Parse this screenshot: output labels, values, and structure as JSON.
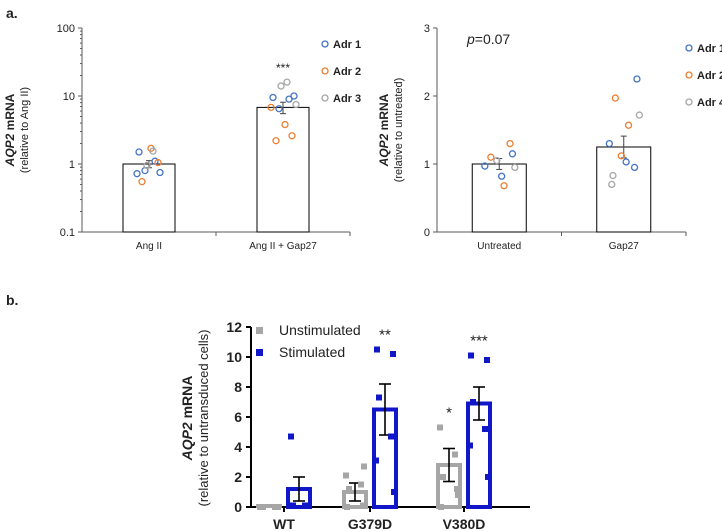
{
  "panel_labels": {
    "a": "a.",
    "b": "b."
  },
  "colors": {
    "blue": "#4472C4",
    "orange": "#ED7D31",
    "gray": "#A5A5A5",
    "dark_blue": "#0F17C8",
    "light_gray": "#A6A6A6",
    "axis": "#595959"
  },
  "chart_data": [
    {
      "id": "a-left",
      "type": "bar",
      "scale": "log",
      "ylabel_italic": "AQP2",
      "ylabel_rest": " mRNA",
      "ylabel2": "(relative to Ang II)",
      "ylim": [
        0.1,
        100
      ],
      "yticks": [
        {
          "v": 0.1,
          "label": "0.1"
        },
        {
          "v": 1,
          "label": "1"
        },
        {
          "v": 10,
          "label": "10"
        },
        {
          "v": 100,
          "label": "100"
        }
      ],
      "categories": [
        "Ang II",
        "Ang II + Gap27"
      ],
      "values": [
        1.0,
        6.8
      ],
      "error": [
        0.12,
        1.3
      ],
      "significance": [
        "",
        "***"
      ],
      "legend": [
        {
          "name": "Adr 1",
          "color": "blue"
        },
        {
          "name": "Adr 2",
          "color": "orange"
        },
        {
          "name": "Adr 3",
          "color": "gray"
        }
      ],
      "points": [
        [
          {
            "v": 1.5,
            "c": "blue"
          },
          {
            "v": 1.1,
            "c": "blue"
          },
          {
            "v": 0.8,
            "c": "blue"
          },
          {
            "v": 0.75,
            "c": "blue"
          },
          {
            "v": 0.72,
            "c": "blue"
          },
          {
            "v": 1.7,
            "c": "orange"
          },
          {
            "v": 1.05,
            "c": "orange"
          },
          {
            "v": 0.55,
            "c": "orange"
          },
          {
            "v": 1.55,
            "c": "gray"
          },
          {
            "v": 0.95,
            "c": "gray"
          }
        ],
        [
          {
            "v": 9.5,
            "c": "blue"
          },
          {
            "v": 9.0,
            "c": "blue"
          },
          {
            "v": 6.5,
            "c": "blue"
          },
          {
            "v": 10.0,
            "c": "blue"
          },
          {
            "v": 6.8,
            "c": "orange"
          },
          {
            "v": 3.8,
            "c": "orange"
          },
          {
            "v": 2.6,
            "c": "orange"
          },
          {
            "v": 2.2,
            "c": "orange"
          },
          {
            "v": 16.0,
            "c": "gray"
          },
          {
            "v": 14.0,
            "c": "gray"
          },
          {
            "v": 7.5,
            "c": "gray"
          }
        ]
      ]
    },
    {
      "id": "a-right",
      "type": "bar",
      "scale": "linear",
      "annotation_p": "p",
      "annotation_rest": "=0.07",
      "ylabel_italic": "AQP2",
      "ylabel_rest": " mRNA",
      "ylabel2": "(relative to untreated)",
      "ylim": [
        0,
        3
      ],
      "yticks": [
        {
          "v": 0,
          "label": "0"
        },
        {
          "v": 1,
          "label": "1"
        },
        {
          "v": 2,
          "label": "2"
        },
        {
          "v": 3,
          "label": "3"
        }
      ],
      "categories": [
        "Untreated",
        "Gap27"
      ],
      "values": [
        1.0,
        1.25
      ],
      "error": [
        0.08,
        0.16
      ],
      "legend": [
        {
          "name": "Adr 1",
          "color": "blue"
        },
        {
          "name": "Adr 2",
          "color": "orange"
        },
        {
          "name": "Adr 4",
          "color": "gray"
        }
      ],
      "points": [
        [
          {
            "v": 1.15,
            "c": "blue"
          },
          {
            "v": 0.97,
            "c": "blue"
          },
          {
            "v": 0.82,
            "c": "blue"
          },
          {
            "v": 1.3,
            "c": "orange"
          },
          {
            "v": 1.1,
            "c": "orange"
          },
          {
            "v": 0.68,
            "c": "orange"
          },
          {
            "v": 1.05,
            "c": "gray"
          },
          {
            "v": 0.95,
            "c": "gray"
          }
        ],
        [
          {
            "v": 2.25,
            "c": "blue"
          },
          {
            "v": 1.3,
            "c": "blue"
          },
          {
            "v": 1.03,
            "c": "blue"
          },
          {
            "v": 0.95,
            "c": "blue"
          },
          {
            "v": 1.97,
            "c": "orange"
          },
          {
            "v": 1.57,
            "c": "orange"
          },
          {
            "v": 1.12,
            "c": "orange"
          },
          {
            "v": 1.72,
            "c": "gray"
          },
          {
            "v": 0.83,
            "c": "gray"
          },
          {
            "v": 0.7,
            "c": "gray"
          }
        ]
      ]
    },
    {
      "id": "b",
      "type": "bar",
      "scale": "linear",
      "ylabel_italic": "AQP2",
      "ylabel_rest": " mRNA",
      "ylabel2": "(relative to untransduced cells)",
      "ylim": [
        0,
        12
      ],
      "yticks": [
        {
          "v": 0,
          "label": "0"
        },
        {
          "v": 2,
          "label": "2"
        },
        {
          "v": 4,
          "label": "4"
        },
        {
          "v": 6,
          "label": "6"
        },
        {
          "v": 8,
          "label": "8"
        },
        {
          "v": 10,
          "label": "10"
        },
        {
          "v": 12,
          "label": "12"
        }
      ],
      "categories": [
        "WT",
        "G379D",
        "V380D"
      ],
      "series": [
        {
          "name": "Unstimulated",
          "color": "light_gray",
          "values": [
            0,
            1.0,
            2.8
          ],
          "error": [
            0,
            0.6,
            1.1
          ],
          "significance": [
            "",
            "",
            "*"
          ],
          "points": [
            [
              0,
              0,
              0,
              0,
              0,
              0
            ],
            [
              0,
              0.1,
              1.2,
              1.5,
              2.1,
              2.7
            ],
            [
              0,
              1.2,
              2.0,
              3.5,
              5.3,
              0.8
            ]
          ]
        },
        {
          "name": "Stimulated",
          "color": "dark_blue",
          "values": [
            1.2,
            6.5,
            6.9
          ],
          "error": [
            0.8,
            1.7,
            1.1
          ],
          "significance": [
            "",
            "**",
            "***"
          ],
          "points": [
            [
              4.7,
              0.1,
              0.1,
              0.1,
              0.1,
              0.1
            ],
            [
              10.5,
              10.2,
              7.3,
              4.7,
              3.1,
              1.0
            ],
            [
              10.1,
              9.8,
              7.0,
              5.2,
              4.1,
              2.0
            ]
          ]
        }
      ]
    }
  ]
}
